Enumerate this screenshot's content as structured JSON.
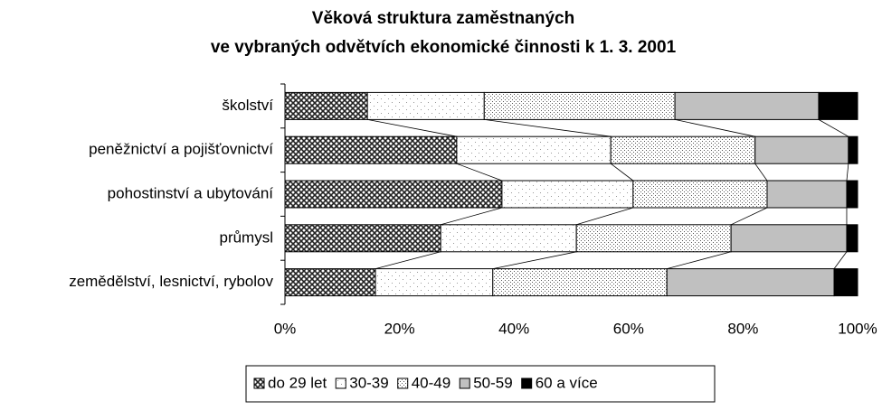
{
  "chart_data": {
    "type": "bar",
    "orientation": "horizontal",
    "stacked": true,
    "title": "Věková struktura zaměstnaných",
    "subtitle": "ve vybraných odvětvích ekonomické činnosti k 1. 3. 2001",
    "categories": [
      "školství",
      "peněžnictví a pojišťovnictví",
      "pohostinství a ubytování",
      "průmysl",
      "zemědělství, lesnictví, rybolov"
    ],
    "series": [
      {
        "name": "do 29 let",
        "color": "#333333",
        "values": [
          14.4,
          30.0,
          37.9,
          27.2,
          15.8
        ]
      },
      {
        "name": "30-39",
        "color": "#ffffff",
        "values": [
          20.4,
          26.9,
          22.9,
          23.7,
          20.5
        ]
      },
      {
        "name": "40-49",
        "color": "#f2f2f2",
        "values": [
          33.3,
          25.2,
          23.4,
          27.0,
          30.4
        ]
      },
      {
        "name": "50-59",
        "color": "#c0c0c0",
        "values": [
          25.1,
          16.3,
          13.9,
          20.2,
          29.2
        ]
      },
      {
        "name": "60 a více",
        "color": "#000000",
        "values": [
          6.8,
          1.6,
          1.9,
          1.9,
          4.1
        ]
      }
    ],
    "xlim": [
      0,
      100
    ],
    "xticks": [
      {
        "value": 0,
        "label": "0%"
      },
      {
        "value": 20,
        "label": "20%"
      },
      {
        "value": 40,
        "label": "40%"
      },
      {
        "value": 60,
        "label": "60%"
      },
      {
        "value": 80,
        "label": "80%"
      },
      {
        "value": 100,
        "label": "100%"
      }
    ],
    "legend": "bottom"
  }
}
